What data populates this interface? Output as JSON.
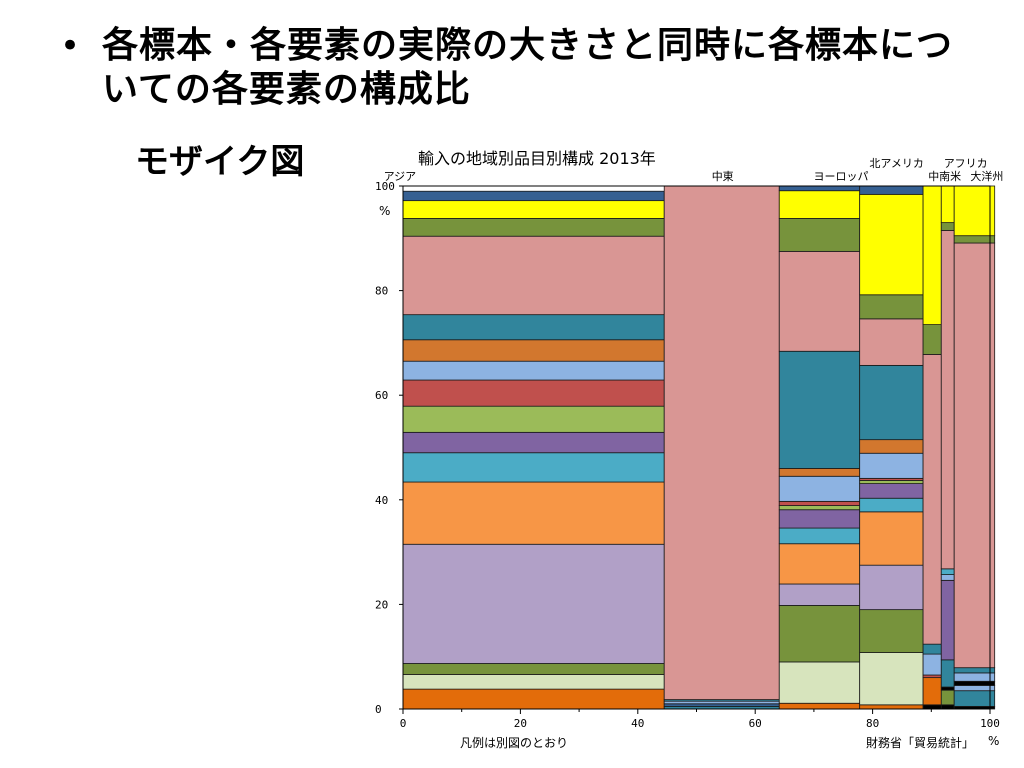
{
  "slide": {
    "bullet": "•",
    "bullet_text": "各標本・各要素の実際の大きさと同時に各標本についての各要素の構成比",
    "sub_item": "モザイク図"
  },
  "chart_data": {
    "type": "mosaic",
    "title": "輸入の地域別品目別構成 2013年",
    "x_axis": {
      "range": [
        0,
        100
      ],
      "ticks": [
        "0",
        "20",
        "40",
        "60",
        "80",
        "100"
      ],
      "unit": "%"
    },
    "y_axis": {
      "range": [
        0,
        100
      ],
      "ticks": [
        "0",
        "20",
        "40",
        "60",
        "80",
        "100"
      ],
      "unit": "%"
    },
    "note_left": "凡例は別図のとおり",
    "note_right": "財務省「貿易統計」",
    "columns": [
      {
        "name": "アジア",
        "width": 44.5,
        "segments": [
          {
            "value": 3.8,
            "color": "#e36c0a"
          },
          {
            "value": 2.8,
            "color": "#d7e4bd"
          },
          {
            "value": 2.1,
            "color": "#77933c"
          },
          {
            "value": 22.8,
            "color": "#b1a0c7"
          },
          {
            "value": 11.9,
            "color": "#f79646"
          },
          {
            "value": 5.6,
            "color": "#4bacc6"
          },
          {
            "value": 3.9,
            "color": "#8064a2"
          },
          {
            "value": 5.0,
            "color": "#9bbb59"
          },
          {
            "value": 5.0,
            "color": "#c0504d"
          },
          {
            "value": 3.6,
            "color": "#8db3e2"
          },
          {
            "value": 4.1,
            "color": "#d2772e"
          },
          {
            "value": 4.8,
            "color": "#31859c"
          },
          {
            "value": 15.0,
            "color": "#d99694"
          },
          {
            "value": 3.4,
            "color": "#77933c"
          },
          {
            "value": 3.4,
            "color": "#ffff00"
          },
          {
            "value": 1.8,
            "color": "#366092"
          }
        ]
      },
      {
        "name": "中東",
        "width": 19.6,
        "segments": [
          {
            "value": 0.5,
            "color": "#31859c"
          },
          {
            "value": 0.5,
            "color": "#366092"
          },
          {
            "value": 0.5,
            "color": "#8db3e2"
          },
          {
            "value": 0.3,
            "color": "#31859c"
          },
          {
            "value": 98.2,
            "color": "#d99694"
          }
        ]
      },
      {
        "name": "ヨーロッパ",
        "width": 13.7,
        "segments": [
          {
            "value": 1.1,
            "color": "#e36c0a"
          },
          {
            "value": 7.9,
            "color": "#d7e4bd"
          },
          {
            "value": 10.8,
            "color": "#77933c"
          },
          {
            "value": 4.1,
            "color": "#b1a0c7"
          },
          {
            "value": 7.7,
            "color": "#f79646"
          },
          {
            "value": 3.0,
            "color": "#4bacc6"
          },
          {
            "value": 3.5,
            "color": "#8064a2"
          },
          {
            "value": 0.8,
            "color": "#9bbb59"
          },
          {
            "value": 0.8,
            "color": "#c0504d"
          },
          {
            "value": 4.8,
            "color": "#8db3e2"
          },
          {
            "value": 1.5,
            "color": "#d2772e"
          },
          {
            "value": 22.4,
            "color": "#31859c"
          },
          {
            "value": 19.1,
            "color": "#d99694"
          },
          {
            "value": 6.3,
            "color": "#77933c"
          },
          {
            "value": 5.3,
            "color": "#ffff00"
          },
          {
            "value": 0.9,
            "color": "#366092"
          }
        ]
      },
      {
        "name": "北アメリカ",
        "width": 10.8,
        "segments": [
          {
            "value": 0.8,
            "color": "#e36c0a"
          },
          {
            "value": 10.0,
            "color": "#d7e4bd"
          },
          {
            "value": 8.2,
            "color": "#77933c"
          },
          {
            "value": 8.5,
            "color": "#b1a0c7"
          },
          {
            "value": 10.2,
            "color": "#f79646"
          },
          {
            "value": 2.6,
            "color": "#4bacc6"
          },
          {
            "value": 2.8,
            "color": "#8064a2"
          },
          {
            "value": 0.6,
            "color": "#9bbb59"
          },
          {
            "value": 0.4,
            "color": "#c0504d"
          },
          {
            "value": 4.8,
            "color": "#8db3e2"
          },
          {
            "value": 2.6,
            "color": "#d2772e"
          },
          {
            "value": 14.2,
            "color": "#31859c"
          },
          {
            "value": 8.9,
            "color": "#d99694"
          },
          {
            "value": 4.6,
            "color": "#77933c"
          },
          {
            "value": 19.2,
            "color": "#ffff00"
          },
          {
            "value": 1.6,
            "color": "#366092"
          }
        ]
      },
      {
        "name": "中南米",
        "width": 3.1,
        "segments": [
          {
            "value": 0.8,
            "color": "#000000"
          },
          {
            "value": 5.2,
            "color": "#e36c0a"
          },
          {
            "value": 0.5,
            "color": "#c0504d"
          },
          {
            "value": 4.0,
            "color": "#8db3e2"
          },
          {
            "value": 1.9,
            "color": "#31859c"
          },
          {
            "value": 55.4,
            "color": "#d99694"
          },
          {
            "value": 5.7,
            "color": "#77933c"
          },
          {
            "value": 26.5,
            "color": "#ffff00"
          }
        ]
      },
      {
        "name": "アフリカ",
        "width": 2.2,
        "segments": [
          {
            "value": 0.8,
            "color": "#000000"
          },
          {
            "value": 2.8,
            "color": "#77933c"
          },
          {
            "value": 0.6,
            "color": "#000000"
          },
          {
            "value": 5.2,
            "color": "#31859c"
          },
          {
            "value": 15.2,
            "color": "#8064a2"
          },
          {
            "value": 1.1,
            "color": "#8db3e2"
          },
          {
            "value": 1.1,
            "color": "#4bacc6"
          },
          {
            "value": 64.7,
            "color": "#d99694"
          },
          {
            "value": 1.5,
            "color": "#77933c"
          },
          {
            "value": 7.0,
            "color": "#ffff00"
          }
        ]
      },
      {
        "name": "大洋州",
        "width": 6.9,
        "segments": [
          {
            "value": 0.5,
            "color": "#000000"
          },
          {
            "value": 3.0,
            "color": "#31859c"
          },
          {
            "value": 1.0,
            "color": "#8db3e2"
          },
          {
            "value": 0.8,
            "color": "#000000"
          },
          {
            "value": 1.6,
            "color": "#8db3e2"
          },
          {
            "value": 1.0,
            "color": "#31859c"
          },
          {
            "value": 81.2,
            "color": "#d99694"
          },
          {
            "value": 1.4,
            "color": "#77933c"
          },
          {
            "value": 9.5,
            "color": "#ffff00"
          }
        ]
      }
    ]
  }
}
